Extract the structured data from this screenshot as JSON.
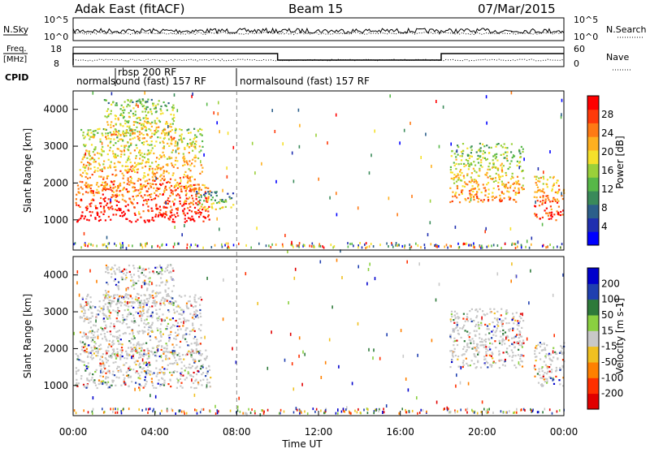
{
  "header": {
    "station": "Adak East (fitACF)",
    "beam": "Beam 15",
    "date": "07/Mar/2015"
  },
  "noise_panel": {
    "left_label": "N.Sky",
    "right_label": "N.Search",
    "left_ticks": [
      "10^5",
      "10^0"
    ],
    "right_ticks": [
      "10^5",
      "10^0"
    ]
  },
  "freq_panel": {
    "left_label": "Freq.",
    "left_unit": "[MHz]",
    "right_label": "Nave",
    "left_ticks": [
      "18",
      "8"
    ],
    "right_ticks": [
      "60",
      "0"
    ]
  },
  "cpid": {
    "label": "CPID",
    "segments": [
      "normalsound (fast) 157 RF",
      "rbsp 200 RF",
      "normalsound (fast) 157 RF"
    ]
  },
  "time_axis": {
    "label": "Time UT",
    "ticks": [
      "00:00",
      "04:00",
      "08:00",
      "12:00",
      "16:00",
      "20:00",
      "00:00"
    ]
  },
  "chart_data": [
    {
      "type": "heatmap",
      "name": "power",
      "ylabel": "Slant Range [km]",
      "ylim": [
        180,
        4500
      ],
      "yticks": [
        1000,
        2000,
        3000,
        4000
      ],
      "xlim": [
        0,
        24
      ],
      "colorbar": {
        "label": "Power [dB]",
        "ticks": [
          "4",
          "8",
          "12",
          "16",
          "20",
          "24",
          "28"
        ],
        "colors": [
          "#0000ff",
          "#1f2fb0",
          "#2c5f8a",
          "#3a8a5a",
          "#57b848",
          "#9ad03a",
          "#f5e02a",
          "#ffb01f",
          "#ff7a14",
          "#ff3a0a",
          "#ff0000"
        ]
      },
      "regions": [
        {
          "t0": 0.1,
          "t1": 6.7,
          "r_lo": 950,
          "r_hi": 2000,
          "level": 0.7
        },
        {
          "t0": 0.3,
          "t1": 6.3,
          "r_lo": 1800,
          "r_hi": 3500,
          "level": 0.45
        },
        {
          "t0": 1.5,
          "t1": 4.9,
          "r_lo": 3200,
          "r_hi": 4300,
          "level": 0.35
        },
        {
          "t0": 6.0,
          "t1": 7.8,
          "r_lo": 1300,
          "r_hi": 1800,
          "level": 0.2
        },
        {
          "t0": 18.4,
          "t1": 22.0,
          "r_lo": 1500,
          "r_hi": 3100,
          "level": 0.4
        },
        {
          "t0": 22.5,
          "t1": 24.0,
          "r_lo": 1000,
          "r_hi": 2200,
          "level": 0.6
        }
      ]
    },
    {
      "type": "heatmap",
      "name": "velocity",
      "ylabel": "Slant Range [km]",
      "ylim": [
        180,
        4500
      ],
      "yticks": [
        1000,
        2000,
        3000,
        4000
      ],
      "xlim": [
        0,
        24
      ],
      "colorbar": {
        "label": "Velocity [m s-1]",
        "ticks": [
          "200",
          "100",
          "50",
          "15",
          "-15",
          "-50",
          "-100",
          "-200"
        ],
        "colors": [
          "#0000cc",
          "#1f3fb0",
          "#2e7a3a",
          "#8ad040",
          "#c8c8c8",
          "#f0c020",
          "#ff8000",
          "#ff3000",
          "#e00000"
        ]
      },
      "regions": [
        {
          "t0": 0.1,
          "t1": 6.7,
          "r_lo": 950,
          "r_hi": 2000,
          "level": 0.5
        },
        {
          "t0": 0.3,
          "t1": 6.3,
          "r_lo": 1800,
          "r_hi": 3500,
          "level": 0.5
        },
        {
          "t0": 1.5,
          "t1": 4.9,
          "r_lo": 3200,
          "r_hi": 4300,
          "level": 0.5
        },
        {
          "t0": 18.4,
          "t1": 22.0,
          "r_lo": 1500,
          "r_hi": 3100,
          "level": 0.5
        },
        {
          "t0": 22.5,
          "t1": 24.0,
          "r_lo": 1000,
          "r_hi": 2200,
          "level": 0.5
        }
      ]
    }
  ]
}
